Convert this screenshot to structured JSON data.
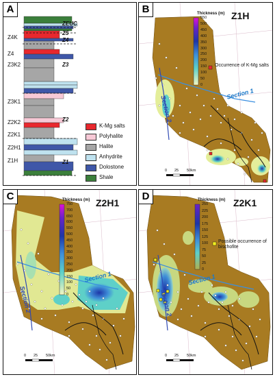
{
  "panels": {
    "a": {
      "label": "A"
    },
    "b": {
      "label": "B",
      "title": "Z1H",
      "thickness_label": "Thickness (m)",
      "ticks": [
        "550",
        "500",
        "450",
        "400",
        "350",
        "300",
        "250",
        "200",
        "150",
        "100",
        "50",
        "0"
      ],
      "note": "Occurrence of K-Mg salts",
      "section": "Section 1",
      "section2": "Section 2"
    },
    "c": {
      "label": "C",
      "title": "Z2H1",
      "thickness_label": "Thickness (m)",
      "ticks": [
        "750",
        "700",
        "650",
        "600",
        "550",
        "500",
        "450",
        "400",
        "350",
        "300",
        "250",
        "200",
        "150",
        "100",
        "50",
        "0"
      ],
      "section": "Section 1",
      "section2": "Section 2"
    },
    "d": {
      "label": "D",
      "title": "Z2K1",
      "thickness_label": "Thickness (m)",
      "ticks": [
        "250",
        "225",
        "200",
        "175",
        "150",
        "125",
        "100",
        "75",
        "50",
        "25",
        "0"
      ],
      "note": "Possible occurrence of bischofite",
      "section": "Section 1",
      "section2": "Section 2"
    }
  },
  "scale_labels": [
    "0",
    "25",
    "50km"
  ],
  "stratigraphy": {
    "left_units": [
      "Z4K",
      "Z4",
      "Z3K2",
      "Z3K1",
      "Z2K2",
      "Z2K1",
      "Z2H1",
      "Z1H"
    ],
    "right_units": [
      "ZEUC",
      "Z5",
      "Z4",
      "Z3",
      "Z2",
      "Z1"
    ]
  },
  "lithology_legend": [
    {
      "name": "K-Mg salts",
      "color": "#e8282e"
    },
    {
      "name": "Polyhalite",
      "color": "#f7c9d6"
    },
    {
      "name": "Halite",
      "color": "#a6a6a6"
    },
    {
      "name": "Anhydrite",
      "color": "#bfe2ef"
    },
    {
      "name": "Dolostone",
      "color": "#3f57a8"
    },
    {
      "name": "Shale",
      "color": "#3b7f3b"
    }
  ],
  "colors": {
    "basin": "#a87b22",
    "low": "#e4ee9a",
    "mid": "#5ed0c8",
    "high": "#1d36a8",
    "top": "#e010d8",
    "section_line": "#3a8fe0",
    "coast": "#111111"
  }
}
